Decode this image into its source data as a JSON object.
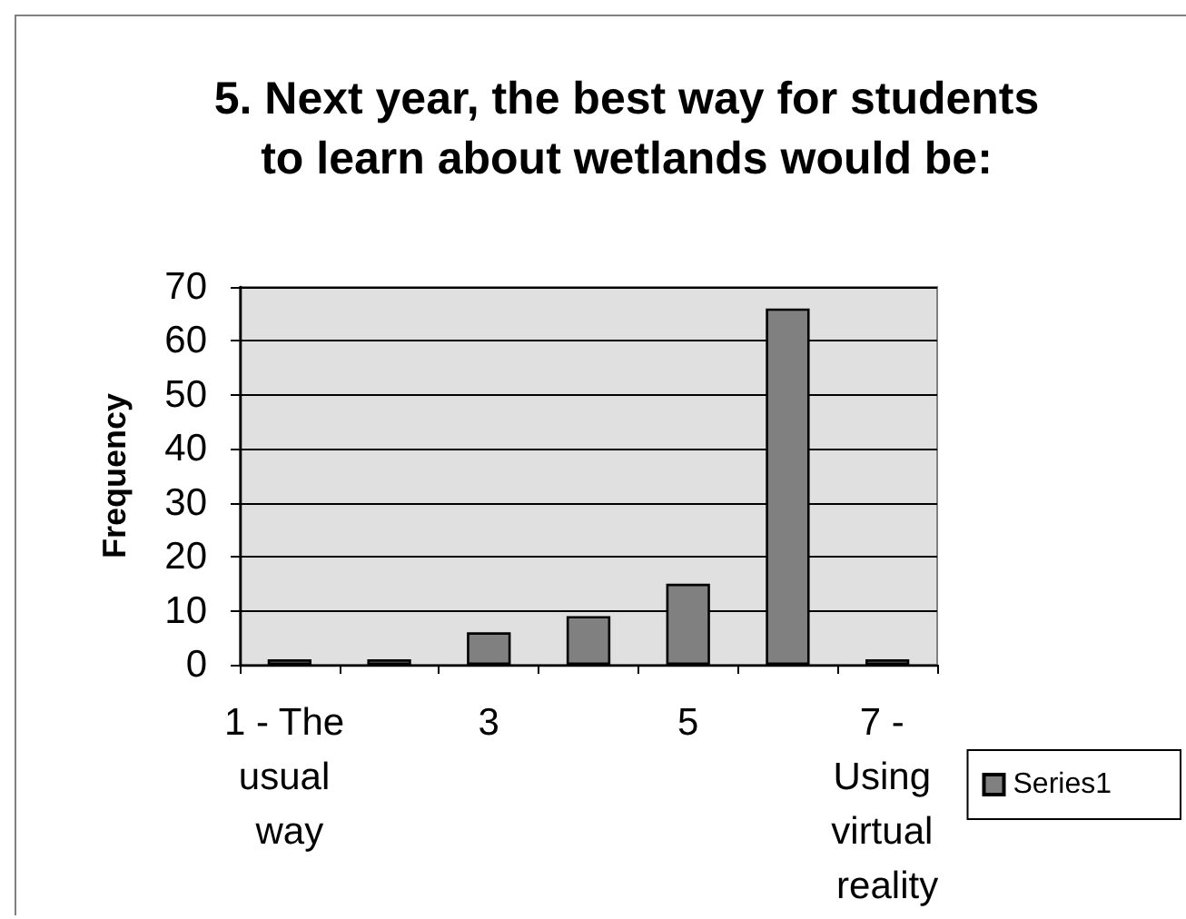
{
  "chart_data": {
    "type": "bar",
    "title": "5. Next year, the best way for students to learn about wetlands would be:",
    "ylabel": "Frequency",
    "categories": [
      "1 - The usual way",
      null,
      "3",
      null,
      "5",
      null,
      "7 - Using virtual reality"
    ],
    "series": [
      {
        "name": "Series1",
        "color": "#808080",
        "values": [
          1,
          1,
          6,
          9,
          15,
          66,
          1
        ]
      }
    ],
    "ylim": [
      0,
      70
    ],
    "yticks": [
      0,
      10,
      20,
      30,
      40,
      50,
      60,
      70
    ],
    "grid": "y",
    "legend": "right"
  }
}
